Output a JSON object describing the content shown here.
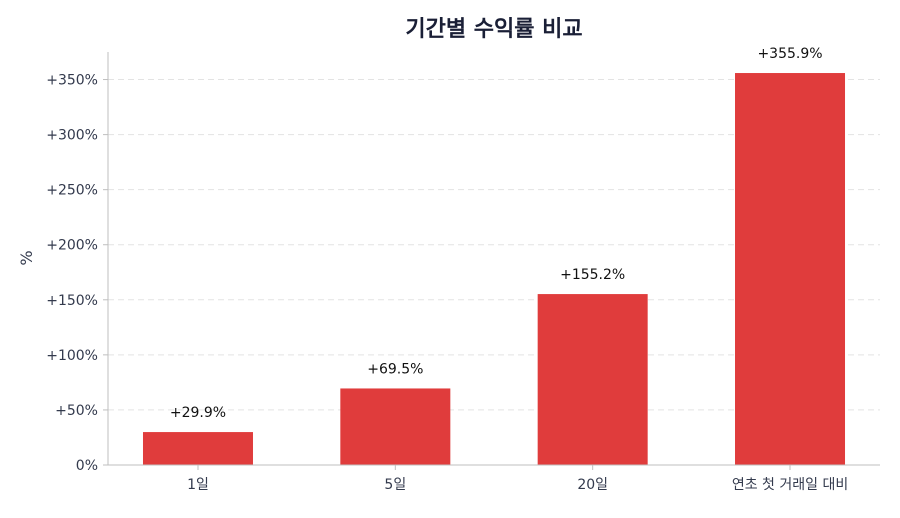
{
  "chart_data": {
    "type": "bar",
    "title": "기간별 수익률 비교",
    "xlabel": "",
    "ylabel": "%",
    "categories": [
      "1일",
      "5일",
      "20일",
      "연초 첫 거래일 대비"
    ],
    "values": [
      29.9,
      69.5,
      155.2,
      355.9
    ],
    "data_labels": [
      "+29.9%",
      "+69.5%",
      "+155.2%",
      "+355.9%"
    ],
    "ylim": [
      0,
      375
    ],
    "yticks": [
      0,
      50,
      100,
      150,
      200,
      250,
      300,
      350
    ],
    "ytick_labels": [
      "0%",
      "+50%",
      "+100%",
      "+150%",
      "+200%",
      "+250%",
      "+300%",
      "+350%"
    ],
    "grid": "horizontal dashed",
    "colors": {
      "bar": "#e03c3c",
      "title": "#1a1f36",
      "text": "#333a4d",
      "grid": "#e3e3e3",
      "axis": "#bfbfbf"
    }
  }
}
